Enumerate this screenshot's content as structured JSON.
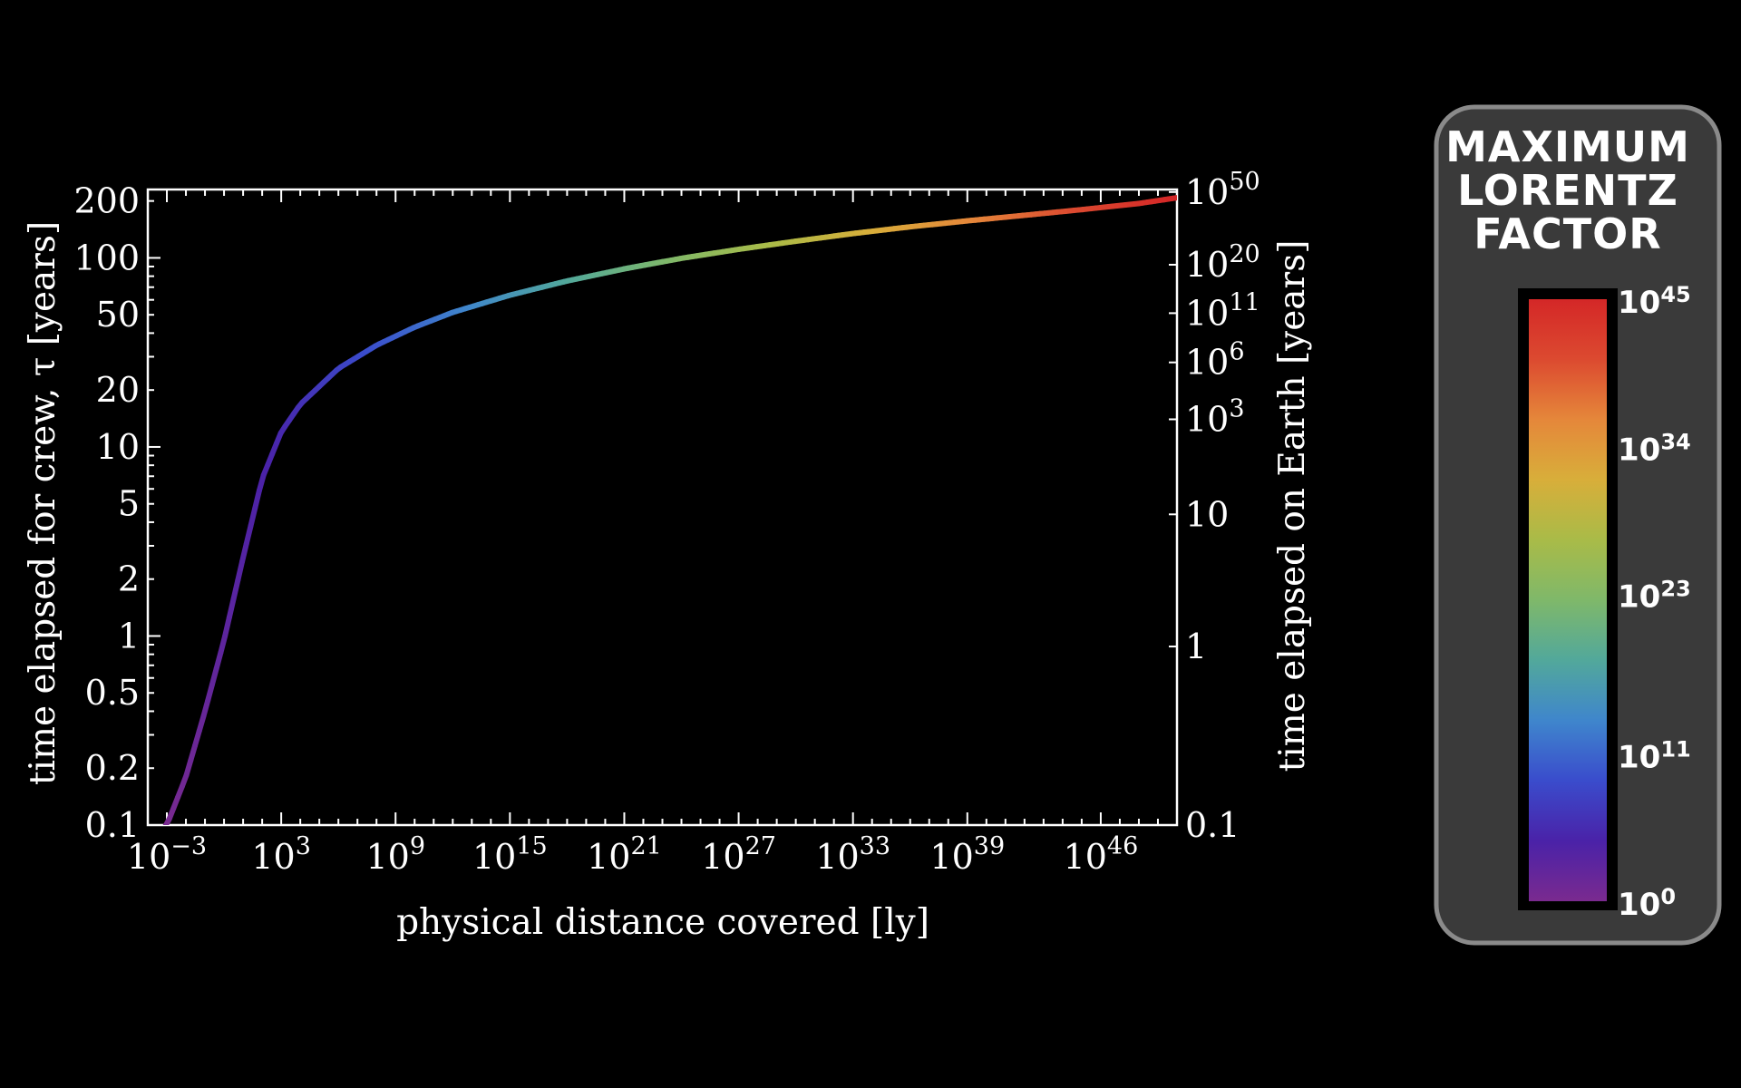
{
  "chart_data": {
    "type": "line",
    "xlabel": "physical distance covered [ly]",
    "ylabel": "time elapsed for crew, τ [years]",
    "y2label": "time elapsed on Earth [years]",
    "x_scale": "log10",
    "y_scale": "log10",
    "xlim": [
      "1e-4",
      "1e50"
    ],
    "ylim": [
      0.1,
      230
    ],
    "x_ticks": [
      {
        "exp": -3,
        "base": "10",
        "sup": "−3"
      },
      {
        "exp": 3,
        "base": "10",
        "sup": "3"
      },
      {
        "exp": 9,
        "base": "10",
        "sup": "9"
      },
      {
        "exp": 15,
        "base": "10",
        "sup": "15"
      },
      {
        "exp": 21,
        "base": "10",
        "sup": "21"
      },
      {
        "exp": 27,
        "base": "10",
        "sup": "27"
      },
      {
        "exp": 33,
        "base": "10",
        "sup": "33"
      },
      {
        "exp": 39,
        "base": "10",
        "sup": "39"
      },
      {
        "exp": 46,
        "base": "10",
        "sup": "46"
      }
    ],
    "y_ticks": [
      {
        "value": 200,
        "label": "200"
      },
      {
        "value": 100,
        "label": "100"
      },
      {
        "value": 50,
        "label": "50"
      },
      {
        "value": 20,
        "label": "20"
      },
      {
        "value": 10,
        "label": "10"
      },
      {
        "value": 5,
        "label": "5"
      },
      {
        "value": 2,
        "label": "2"
      },
      {
        "value": 1,
        "label": "1"
      },
      {
        "value": 0.5,
        "label": "0.5"
      },
      {
        "value": 0.2,
        "label": "0.2"
      },
      {
        "value": 0.1,
        "label": "0.1"
      }
    ],
    "y2_ticks": [
      {
        "crew_years": 223,
        "base": "10",
        "sup": "50"
      },
      {
        "crew_years": 92,
        "base": "10",
        "sup": "20"
      },
      {
        "crew_years": 51,
        "base": "10",
        "sup": "11"
      },
      {
        "crew_years": 28,
        "base": "10",
        "sup": "6"
      },
      {
        "crew_years": 14,
        "base": "10",
        "sup": "3"
      },
      {
        "crew_years": 4.4,
        "base": "10",
        "sup": ""
      },
      {
        "crew_years": 0.88,
        "base": "1",
        "sup": ""
      },
      {
        "crew_years": 0.1,
        "base": "0.1",
        "sup": ""
      }
    ],
    "series": [
      {
        "x_log10": [
          -4,
          -3,
          -2,
          -1,
          0,
          1,
          2,
          3,
          4,
          6,
          8,
          10,
          12,
          15,
          18,
          21,
          24,
          27,
          30,
          33,
          36,
          39,
          42,
          45,
          48,
          50
        ],
        "y": [
          0.08,
          0.1,
          0.18,
          0.4,
          0.95,
          2.6,
          6.8,
          12.0,
          16.8,
          26.0,
          34.5,
          43.0,
          51.5,
          63.5,
          75.5,
          87.5,
          99.5,
          111.0,
          122.5,
          134.5,
          146.0,
          157.0,
          168.0,
          180.0,
          194.0,
          208.0
        ],
        "color_scale": "lorentz_factor"
      }
    ],
    "colorbar": {
      "title_lines": [
        "MAXIMUM",
        "LORENTZ",
        "FACTOR"
      ],
      "ticks": [
        {
          "base": "10",
          "sup": "45",
          "exp": 45
        },
        {
          "base": "10",
          "sup": "34",
          "exp": 34
        },
        {
          "base": "10",
          "sup": "23",
          "exp": 23
        },
        {
          "base": "10",
          "sup": "11",
          "exp": 11
        },
        {
          "base": "10",
          "sup": "0",
          "exp": 0
        }
      ],
      "range_exp": [
        0,
        45
      ],
      "colors": [
        "#7a2a8f",
        "#4a22a8",
        "#3a4ccc",
        "#3f86cc",
        "#52a89b",
        "#7fb86a",
        "#a9bb48",
        "#d8ae3a",
        "#e5873a",
        "#dc4a30",
        "#d42727"
      ]
    },
    "colors": {
      "background": "#000000",
      "axes": "#ffffff",
      "panel": "#3a3a3a",
      "panel_border": "#8a8a8a"
    }
  }
}
